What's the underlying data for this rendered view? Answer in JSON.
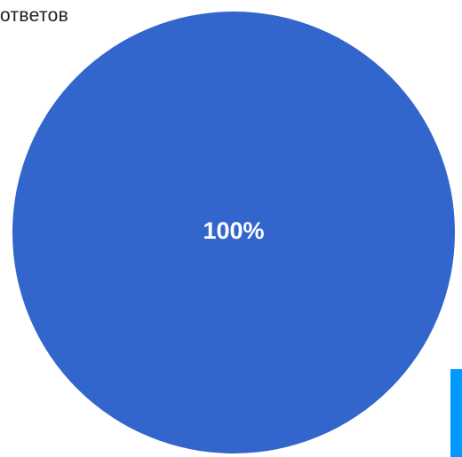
{
  "header": {
    "text": "ответов"
  },
  "chart_data": {
    "type": "pie",
    "slices": [
      {
        "value": 100,
        "label": "100%",
        "color": "#3366CC"
      }
    ]
  },
  "colors": {
    "slice": "#3366CC",
    "edge_marker": "#0099FF",
    "background": "#FFFFFF"
  }
}
